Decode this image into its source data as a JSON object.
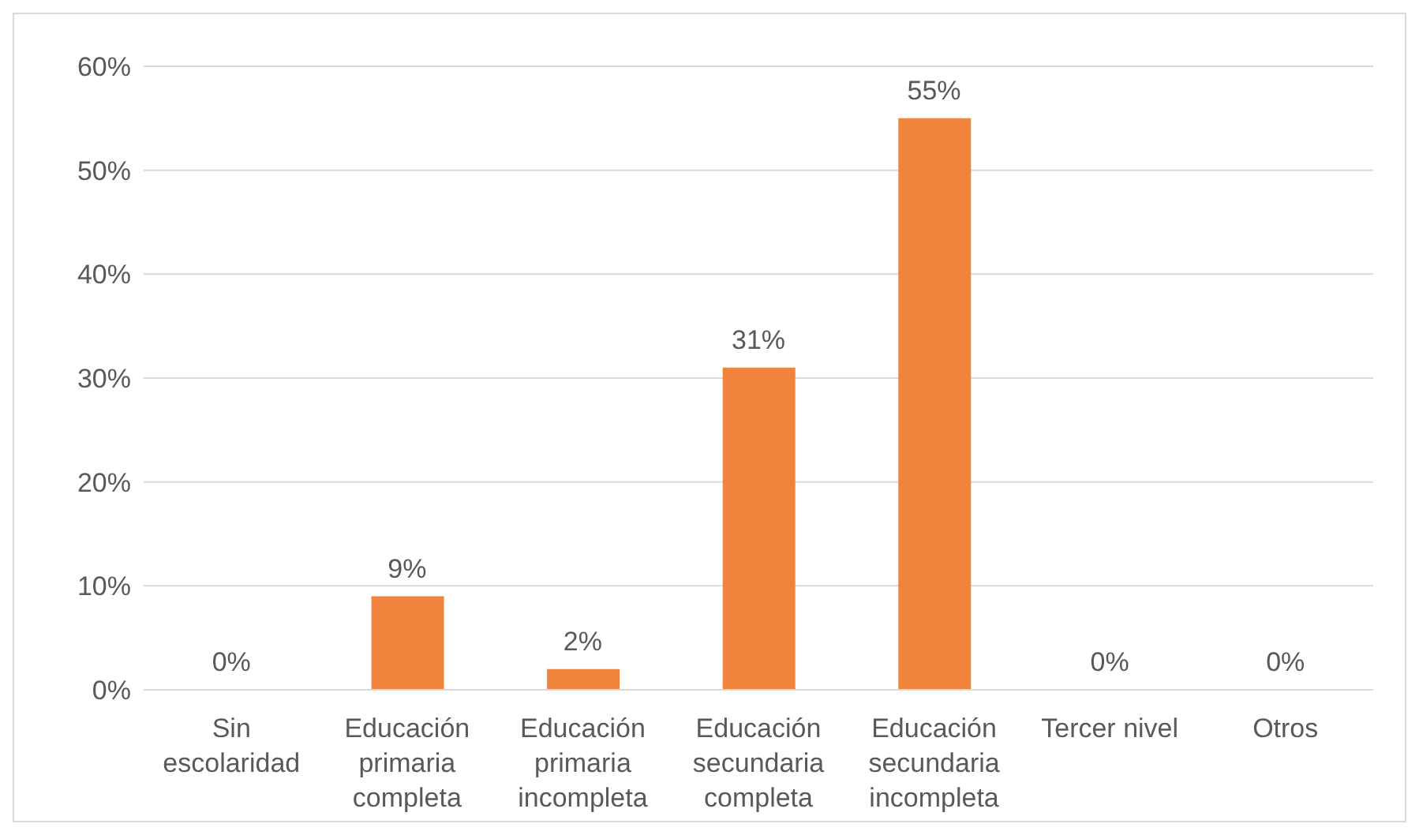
{
  "chart_data": {
    "type": "bar",
    "categories": [
      "Sin escolaridad",
      "Educación primaria completa",
      "Educación primaria incompleta",
      "Educación secundaria completa",
      "Educación secundaria incompleta",
      "Tercer nivel",
      "Otros"
    ],
    "values": [
      0,
      9,
      2,
      31,
      55,
      0,
      0
    ],
    "value_labels": [
      "0%",
      "9%",
      "2%",
      "31%",
      "55%",
      "0%",
      "0%"
    ],
    "color": "#f0843c",
    "ylim": [
      0,
      60
    ],
    "yticks": [
      {
        "value": 0,
        "label": "0%"
      },
      {
        "value": 10,
        "label": "10%"
      },
      {
        "value": 20,
        "label": "20%"
      },
      {
        "value": 30,
        "label": "30%"
      },
      {
        "value": 40,
        "label": "40%"
      },
      {
        "value": 50,
        "label": "50%"
      },
      {
        "value": 60,
        "label": "60%"
      }
    ],
    "grid": "y"
  }
}
